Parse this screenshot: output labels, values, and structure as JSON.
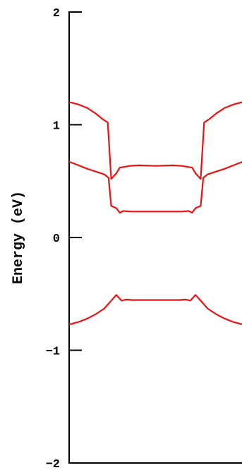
{
  "chart_data": {
    "type": "line",
    "title": "",
    "xlabel": "",
    "ylabel": "Energy (eV)",
    "xlim": [
      0,
      1
    ],
    "ylim": [
      -2,
      2
    ],
    "yticks": [
      {
        "value": 2,
        "label": "2"
      },
      {
        "value": 1,
        "label": "1"
      },
      {
        "value": 0,
        "label": "0"
      },
      {
        "value": -1,
        "label": "−1"
      },
      {
        "value": -2,
        "label": "−2"
      }
    ],
    "grid": false,
    "legend": "none",
    "line_color": "#ee1111",
    "axis_color": "#000000",
    "series": [
      {
        "x": [
          0.0,
          0.05,
          0.1,
          0.15,
          0.2,
          0.24,
          0.27,
          0.3,
          0.33,
          0.36,
          0.4,
          0.5,
          0.6,
          0.64,
          0.67,
          0.7,
          0.73,
          0.76,
          0.8,
          0.85,
          0.9,
          0.95,
          1.0
        ],
        "y": [
          -0.77,
          -0.75,
          -0.72,
          -0.68,
          -0.63,
          -0.56,
          -0.51,
          -0.56,
          -0.55,
          -0.555,
          -0.555,
          -0.555,
          -0.555,
          -0.555,
          -0.55,
          -0.56,
          -0.51,
          -0.56,
          -0.63,
          -0.68,
          -0.72,
          -0.75,
          -0.77
        ]
      },
      {
        "x": [
          0.0,
          0.05,
          0.1,
          0.15,
          0.2,
          0.225,
          0.24,
          0.27,
          0.29,
          0.31,
          0.35,
          0.4,
          0.5,
          0.6,
          0.65,
          0.69,
          0.71,
          0.73,
          0.76,
          0.775,
          0.8,
          0.85,
          0.9,
          0.95,
          1.0
        ],
        "y": [
          0.67,
          0.64,
          0.61,
          0.585,
          0.56,
          0.53,
          0.28,
          0.26,
          0.22,
          0.235,
          0.23,
          0.23,
          0.23,
          0.23,
          0.23,
          0.235,
          0.22,
          0.26,
          0.28,
          0.53,
          0.56,
          0.585,
          0.61,
          0.64,
          0.67
        ]
      },
      {
        "x": [
          0.0,
          0.05,
          0.1,
          0.15,
          0.19,
          0.22,
          0.24,
          0.27,
          0.29,
          0.35,
          0.4,
          0.5,
          0.6,
          0.65,
          0.71,
          0.73,
          0.76,
          0.78,
          0.81,
          0.85,
          0.9,
          0.95,
          1.0
        ],
        "y": [
          1.2,
          1.18,
          1.15,
          1.1,
          1.05,
          1.02,
          0.52,
          0.57,
          0.62,
          0.635,
          0.64,
          0.635,
          0.64,
          0.635,
          0.62,
          0.57,
          0.52,
          1.02,
          1.05,
          1.1,
          1.15,
          1.18,
          1.2
        ]
      }
    ]
  }
}
